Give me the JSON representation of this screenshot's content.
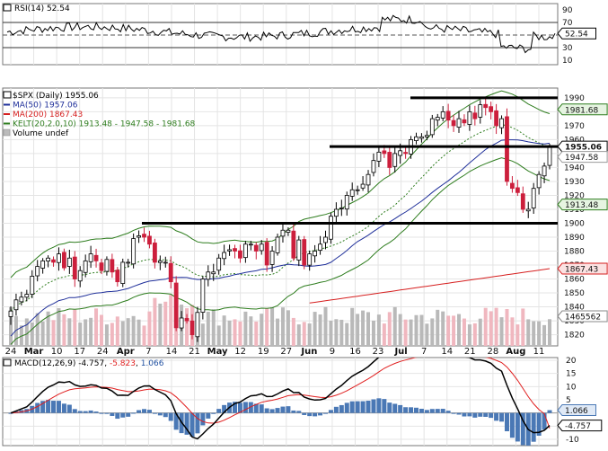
{
  "rsi_panel": {
    "label": "RSI(14) 52.54",
    "value_badge": "52.54",
    "ticks": [
      "90",
      "70",
      "50",
      "30",
      "10"
    ]
  },
  "price_panel": {
    "legend": [
      {
        "text": "$SPX (Daily) 1955.06",
        "color": "#000000"
      },
      {
        "text": "MA(50) 1957.06",
        "color": "#1f2f9a"
      },
      {
        "text": "MA(200) 1867.43",
        "color": "#d61f1f"
      },
      {
        "text": "KELT(20,2.0,10) 1913.48 - 1947.58 - 1981.68",
        "color": "#2e7d1e"
      },
      {
        "text": "Volume undef",
        "color": "#000000"
      }
    ],
    "ticks": [
      "1990",
      "1980",
      "1970",
      "1960",
      "1950",
      "1940",
      "1930",
      "1920",
      "1910",
      "1900",
      "1890",
      "1880",
      "1870",
      "1860",
      "1850",
      "1840",
      "1830",
      "1820"
    ],
    "badges": [
      "1981.68",
      "1955.06",
      "1947.58",
      "1913.48",
      "1867.43",
      "1465562"
    ],
    "colors": {
      "up": "#ffffff",
      "down": "#cc1f3c",
      "ma50": "#1f2f9a",
      "ma200": "#d61f1f",
      "kelt": "#2e7d1e",
      "volume": "#b9b9b9",
      "volume_down": "#f0b7bf"
    }
  },
  "macd_panel": {
    "label": "MACD(12,26,9) -4.757, -5.823, 1.066",
    "label_parts": [
      "MACD(12,26,9) -4.757, ",
      "-5.823",
      ", ",
      "1.066"
    ],
    "ticks": [
      "20",
      "15",
      "10",
      "5",
      "0",
      "-5",
      "-10"
    ],
    "badges": [
      "1.066",
      "-4.757"
    ]
  },
  "x_axis": {
    "labels": [
      "24",
      "Mar",
      "10",
      "17",
      "24",
      "Apr",
      "7",
      "14",
      "21",
      "May",
      "12",
      "19",
      "27",
      "Jun",
      "9",
      "16",
      "23",
      "Jul",
      "7",
      "14",
      "21",
      "28",
      "Aug",
      "11"
    ],
    "bold": [
      "Mar",
      "Apr",
      "May",
      "Jun",
      "Jul",
      "Aug"
    ]
  },
  "chart_data": {
    "type": "candlestick",
    "title": "$SPX (Daily) 1955.06",
    "period": "Daily",
    "ylim": [
      1812,
      1997
    ],
    "series": [
      {
        "name": "$SPX",
        "close": [
          1837,
          1845,
          1847,
          1849,
          1862,
          1869,
          1873,
          1875,
          1872,
          1878,
          1868,
          1875,
          1860,
          1866,
          1873,
          1878,
          1873,
          1866,
          1874,
          1865,
          1858,
          1872,
          1872,
          1889,
          1891,
          1890,
          1885,
          1872,
          1873,
          1872,
          1858,
          1825,
          1832,
          1830,
          1820,
          1836,
          1860,
          1865,
          1865,
          1875,
          1879,
          1881,
          1880,
          1875,
          1885,
          1885,
          1880,
          1885,
          1870,
          1880,
          1890,
          1895,
          1895,
          1875,
          1888,
          1870,
          1878,
          1880,
          1885,
          1890,
          1905,
          1910,
          1911,
          1920,
          1924,
          1924,
          1928,
          1935,
          1945,
          1951,
          1950,
          1940,
          1950,
          1952,
          1950,
          1960,
          1962,
          1962,
          1963,
          1975,
          1976,
          1980,
          1974,
          1970,
          1975,
          1972,
          1980,
          1975,
          1985,
          1983,
          1980,
          1970,
          1975,
          1930,
          1925,
          1922,
          1910,
          1910,
          1925,
          1935,
          1941,
          1955
        ]
      },
      {
        "name": "MA(50)",
        "value": 1957.06
      },
      {
        "name": "MA(200)",
        "value": 1867.43
      },
      {
        "name": "KELT(20,2.0,10)",
        "lower": 1913.48,
        "middle": 1947.58,
        "upper": 1981.68
      }
    ],
    "horizontal_levels": [
      1990,
      1955,
      1900
    ],
    "rsi": {
      "name": "RSI(14)",
      "value": 52.54,
      "ylim": [
        10,
        90
      ]
    },
    "macd": {
      "name": "MACD(12,26,9)",
      "macd": -4.757,
      "signal": -5.823,
      "histogram": 1.066,
      "ylim": [
        -12,
        21
      ]
    }
  }
}
